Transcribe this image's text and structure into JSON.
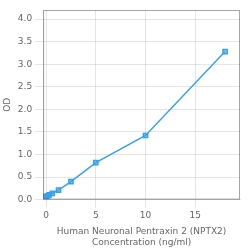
{
  "chart_data": {
    "type": "line",
    "x": [
      0.0,
      0.156,
      0.313,
      0.625,
      1.25,
      2.5,
      5.0,
      10.0,
      18.0
    ],
    "values": [
      0.065,
      0.08,
      0.105,
      0.14,
      0.21,
      0.4,
      0.82,
      1.42,
      3.28
    ],
    "marker": "square",
    "xlabel": "Human Neuronal Pentraxin 2 (NPTX2)\nConcentration (ng/ml)",
    "ylabel": "OD",
    "xlim": [
      -0.3,
      19.5
    ],
    "ylim": [
      0,
      4.2
    ],
    "xticks": [
      0,
      5,
      10,
      15
    ],
    "yticks": [
      {
        "value": 0.0,
        "label": "0.0"
      },
      0.5,
      {
        "value": 1.0,
        "label": "1.0"
      },
      1.5,
      {
        "value": 2.0,
        "label": "2.0"
      },
      2.5,
      {
        "value": 3.0,
        "label": "3.0"
      },
      3.5,
      {
        "value": 4.0,
        "label": "4.0"
      }
    ],
    "grid": true
  }
}
